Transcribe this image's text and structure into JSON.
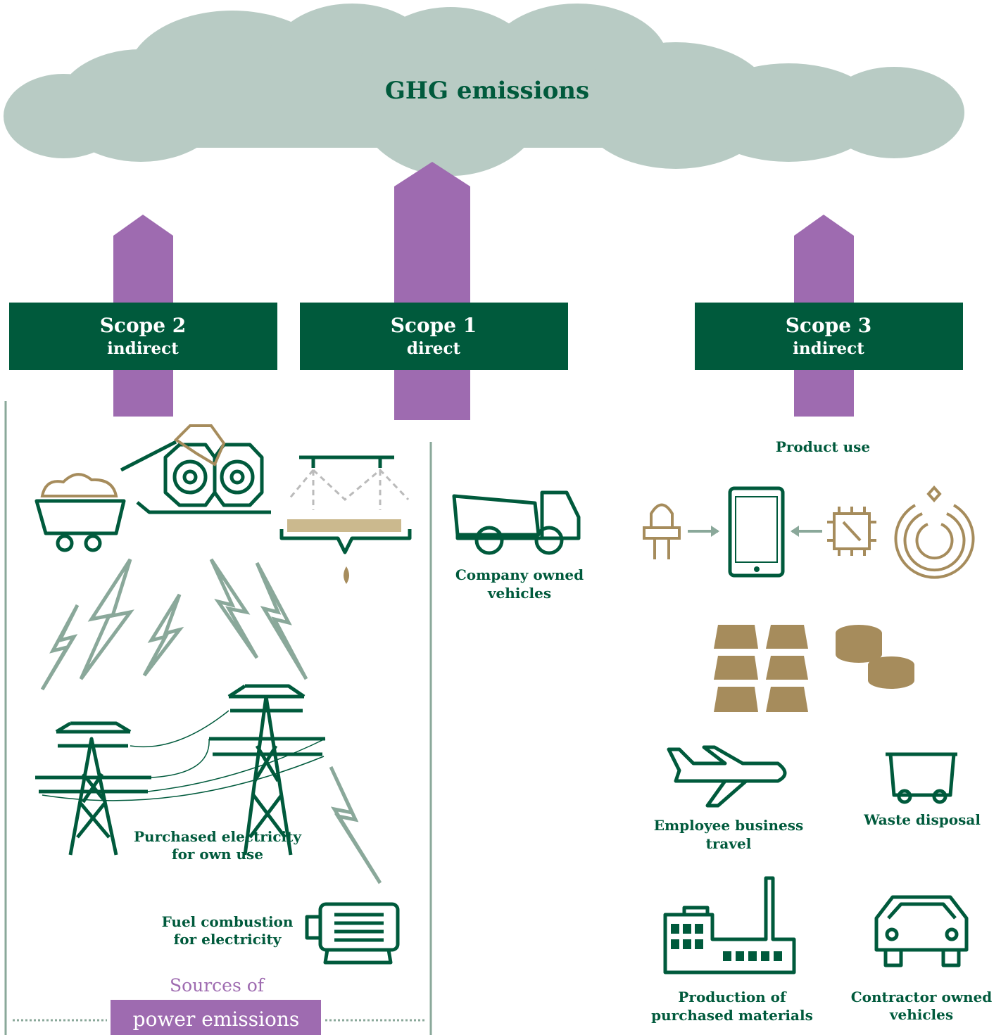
{
  "title": "GHG emissions",
  "scopes": [
    {
      "name": "Scope 2",
      "kind": "indirect"
    },
    {
      "name": "Scope 1",
      "kind": "direct"
    },
    {
      "name": "Scope 3",
      "kind": "indirect"
    }
  ],
  "sources": {
    "company_vehicles": [
      "Company owned",
      "vehicles"
    ],
    "purchased_electricity": [
      "Purchased electricity",
      "for own use"
    ],
    "fuel_combustion": [
      "Fuel combustion",
      "for electricity"
    ],
    "power_heading": [
      "Sources of",
      "power emissions"
    ]
  },
  "scope3_items": {
    "product_use": "Product use",
    "business_travel": [
      "Employee business",
      "travel"
    ],
    "waste_disposal": "Waste disposal",
    "production": [
      "Production of",
      "purchased materials"
    ],
    "contractor_vehicles": [
      "Contractor owned",
      "vehicles"
    ]
  }
}
